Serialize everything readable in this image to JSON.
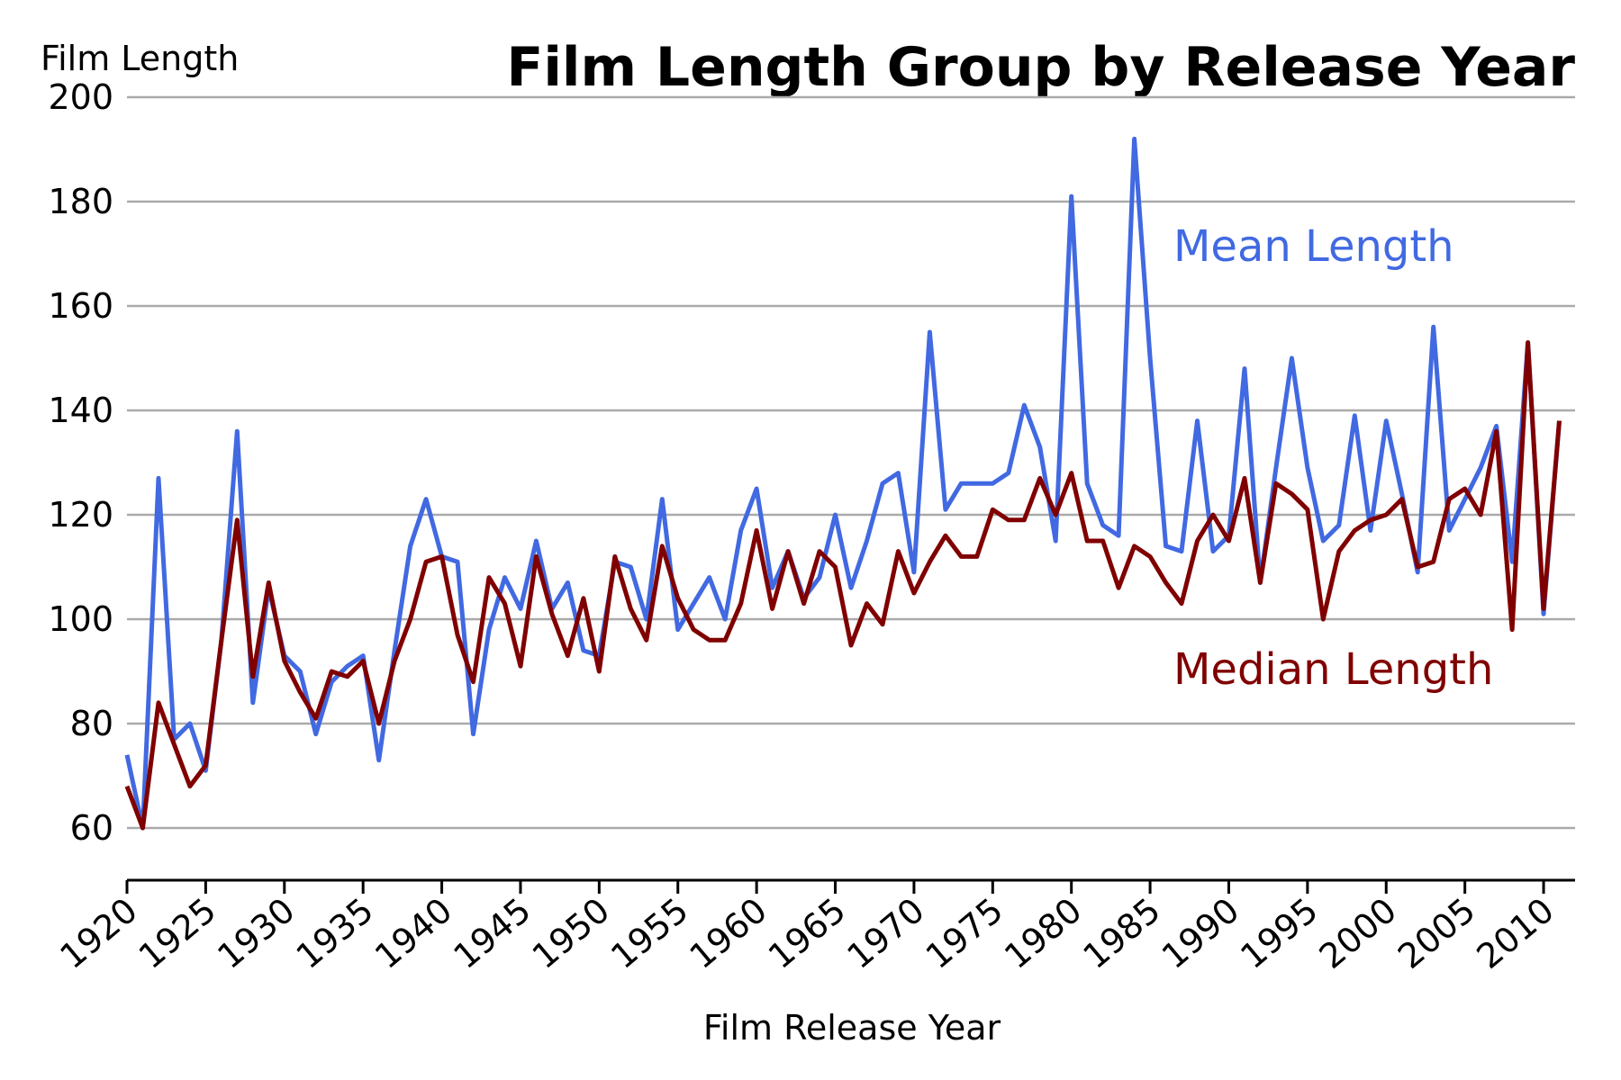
{
  "chart_data": {
    "type": "line",
    "title": "Film Length Group by Release Year",
    "ylabel": "Film Length",
    "xlabel": "Film Release Year",
    "xlim": [
      1920,
      2012
    ],
    "ylim": [
      50,
      200
    ],
    "xticks": [
      "1920",
      "1925",
      "1930",
      "1935",
      "1940",
      "1945",
      "1950",
      "1955",
      "1960",
      "1965",
      "1970",
      "1975",
      "1980",
      "1985",
      "1990",
      "1995",
      "2000",
      "2005",
      "2010"
    ],
    "yticks": [
      "60",
      "80",
      "100",
      "120",
      "140",
      "160",
      "180",
      "200"
    ],
    "grid": true,
    "legend": "inline labels",
    "x": [
      1920,
      1921,
      1922,
      1923,
      1924,
      1925,
      1926,
      1927,
      1928,
      1929,
      1930,
      1931,
      1932,
      1933,
      1934,
      1935,
      1936,
      1937,
      1938,
      1939,
      1940,
      1941,
      1942,
      1943,
      1944,
      1945,
      1946,
      1947,
      1948,
      1949,
      1950,
      1951,
      1952,
      1953,
      1954,
      1955,
      1956,
      1957,
      1958,
      1959,
      1960,
      1961,
      1962,
      1963,
      1964,
      1965,
      1966,
      1967,
      1968,
      1969,
      1970,
      1971,
      1972,
      1973,
      1974,
      1975,
      1976,
      1977,
      1978,
      1979,
      1980,
      1981,
      1982,
      1983,
      1984,
      1985,
      1986,
      1987,
      1988,
      1989,
      1990,
      1991,
      1992,
      1993,
      1994,
      1995,
      1996,
      1997,
      1998,
      1999,
      2000,
      2001,
      2002,
      2003,
      2004,
      2005,
      2006,
      2007,
      2008,
      2009,
      2010,
      2011
    ],
    "series": [
      {
        "name": "Mean Length",
        "color": "#4169e1",
        "values": [
          74,
          60,
          127,
          77,
          80,
          71,
          96,
          136,
          84,
          106,
          93,
          90,
          78,
          88,
          91,
          93,
          73,
          94,
          114,
          123,
          112,
          111,
          78,
          98,
          108,
          102,
          115,
          102,
          107,
          94,
          93,
          111,
          110,
          100,
          123,
          98,
          103,
          108,
          100,
          117,
          125,
          106,
          113,
          104,
          108,
          120,
          106,
          115,
          126,
          128,
          109,
          155,
          121,
          126,
          126,
          126,
          128,
          141,
          133,
          115,
          181,
          126,
          118,
          116,
          192,
          150,
          114,
          113,
          138,
          113,
          116,
          148,
          107,
          129,
          150,
          129,
          115,
          118,
          139,
          117,
          138,
          124,
          109,
          156,
          117,
          123,
          129,
          137,
          111,
          153,
          101,
          138
        ]
      },
      {
        "name": "Median Length",
        "color": "#800000",
        "values": [
          68,
          60,
          84,
          76,
          68,
          72,
          96,
          119,
          89,
          107,
          92,
          86,
          81,
          90,
          89,
          92,
          80,
          92,
          100,
          111,
          112,
          97,
          88,
          108,
          103,
          91,
          112,
          101,
          93,
          104,
          90,
          112,
          102,
          96,
          114,
          104,
          98,
          96,
          96,
          103,
          117,
          102,
          113,
          103,
          113,
          110,
          95,
          103,
          99,
          113,
          105,
          111,
          116,
          112,
          112,
          121,
          119,
          119,
          127,
          120,
          128,
          115,
          115,
          106,
          114,
          112,
          107,
          103,
          115,
          120,
          115,
          127,
          107,
          126,
          124,
          121,
          100,
          113,
          117,
          119,
          120,
          123,
          110,
          111,
          123,
          125,
          120,
          136,
          98,
          153,
          102,
          138
        ]
      }
    ]
  }
}
